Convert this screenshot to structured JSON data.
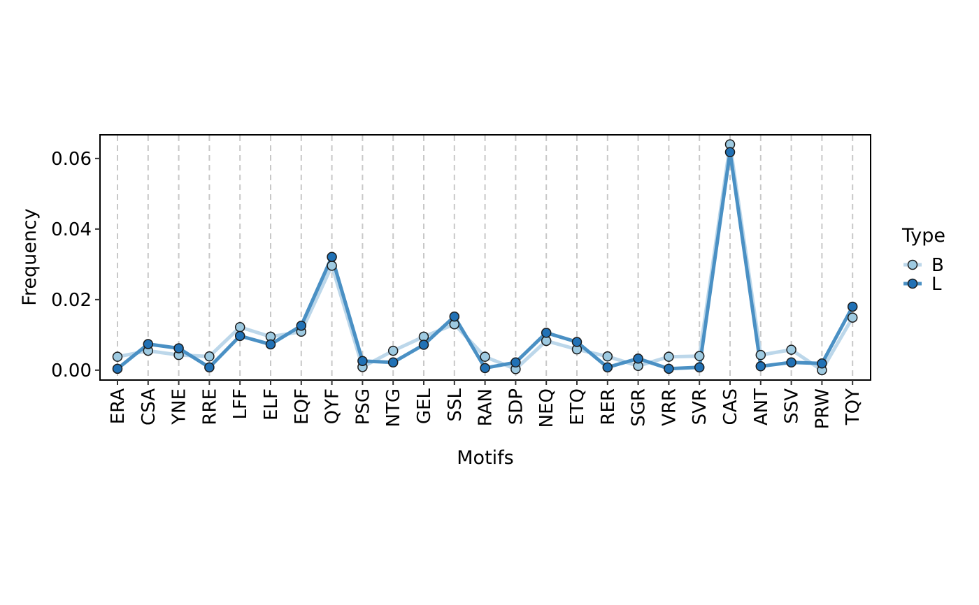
{
  "chart_data": {
    "type": "line",
    "xlabel": "Motifs",
    "ylabel": "Frequency",
    "categories": [
      "ERA",
      "CSA",
      "YNE",
      "RRE",
      "LFF",
      "ELF",
      "EQF",
      "QYF",
      "PSG",
      "NTG",
      "GEL",
      "SSL",
      "RAN",
      "SDP",
      "NEQ",
      "ETQ",
      "RER",
      "SGR",
      "VRR",
      "SVR",
      "CAS",
      "ANT",
      "SSV",
      "PRW",
      "TQY"
    ],
    "ylim": [
      -0.0028,
      0.0667
    ],
    "yticks": [
      0.0,
      0.02,
      0.04,
      0.06
    ],
    "ytick_labels": [
      "0.00",
      "0.02",
      "0.04",
      "0.06"
    ],
    "grid": "vertical dashed lines at each category",
    "legend": {
      "title": "Type",
      "placement": "right"
    },
    "series": [
      {
        "name": "B",
        "line_color": "#bcd7ea",
        "point_color": "#9ecae1",
        "values": [
          0.0038,
          0.0055,
          0.0043,
          0.0039,
          0.0122,
          0.0095,
          0.0109,
          0.0296,
          0.0009,
          0.0055,
          0.0095,
          0.013,
          0.0038,
          0.0003,
          0.0083,
          0.0059,
          0.0039,
          0.0012,
          0.0038,
          0.004,
          0.064,
          0.0043,
          0.0058,
          0.0,
          0.0149
        ]
      },
      {
        "name": "L",
        "line_color": "#4a90c4",
        "point_color": "#2171b5",
        "values": [
          0.0004,
          0.0074,
          0.0062,
          0.0008,
          0.0097,
          0.0073,
          0.0126,
          0.0321,
          0.0026,
          0.0022,
          0.0072,
          0.0152,
          0.0006,
          0.0022,
          0.0106,
          0.008,
          0.0008,
          0.0033,
          0.0004,
          0.0008,
          0.0618,
          0.0011,
          0.0022,
          0.0019,
          0.018
        ]
      }
    ]
  }
}
